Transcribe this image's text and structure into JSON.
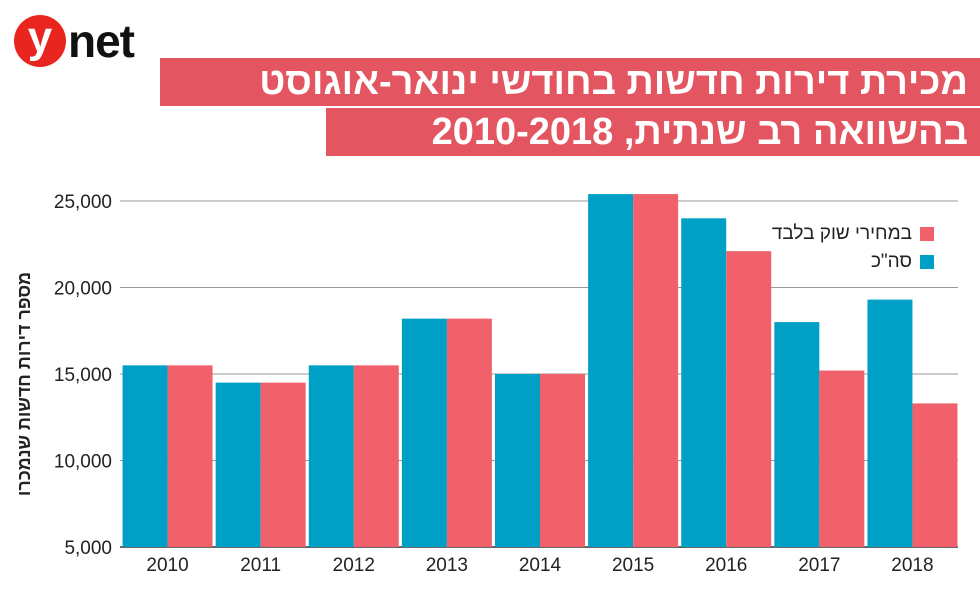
{
  "logo": {
    "mark": "y",
    "text": "net"
  },
  "title": {
    "line1": "מכירת דירות חדשות בחודשי ינואר-אוגוסט",
    "line2": "בהשוואה רב שנתית, 2010-2018"
  },
  "colors": {
    "total": "#00a0c6",
    "market": "#f0616b",
    "title_bg": "#e35560",
    "logo_red": "#e8261f",
    "grid": "#9a9a9a"
  },
  "chart_data": {
    "type": "bar",
    "title": "מכירת דירות חדשות בחודשי ינואר-אוגוסט בהשוואה רב שנתית, 2010-2018",
    "xlabel": "",
    "ylabel": "מספר דירות חדשות שנמכרו",
    "ylim": [
      5000,
      25000
    ],
    "yticks": [
      5000,
      10000,
      15000,
      20000,
      25000
    ],
    "ytick_labels": [
      "5,000",
      "10,000",
      "15,000",
      "20,000",
      "25,000"
    ],
    "categories": [
      "2010",
      "2011",
      "2012",
      "2013",
      "2014",
      "2015",
      "2016",
      "2017",
      "2018"
    ],
    "series": [
      {
        "name": "סה\"כ",
        "key": "total",
        "values": [
          15500,
          14500,
          15500,
          18200,
          15000,
          25400,
          24000,
          18000,
          19300
        ]
      },
      {
        "name": "במחירי שוק בלבד",
        "key": "market",
        "values": [
          15500,
          14500,
          15500,
          18200,
          15000,
          25400,
          22100,
          15200,
          13300
        ]
      }
    ],
    "legend_position": "top-right",
    "grid": true
  }
}
